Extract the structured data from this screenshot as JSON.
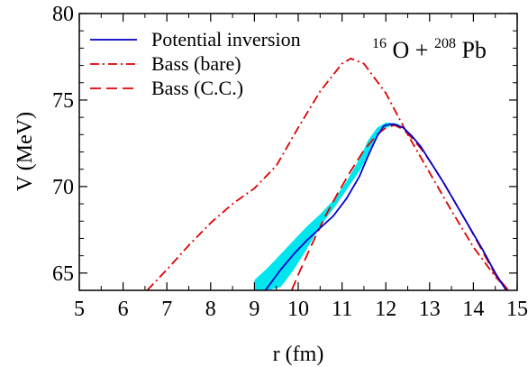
{
  "chart_data": {
    "type": "line",
    "title": "",
    "xlabel": "r   (fm)",
    "ylabel": "V   (MeV)",
    "xlim": [
      5,
      15
    ],
    "ylim": [
      64,
      80
    ],
    "x_ticks": [
      5,
      6,
      7,
      8,
      9,
      10,
      11,
      12,
      13,
      14,
      15
    ],
    "y_ticks": [
      65,
      70,
      75,
      80
    ],
    "grid": false,
    "legend_position": "top-left",
    "annotation": {
      "mass_a": "16",
      "element_a": "O",
      "plus": " + ",
      "mass_b": "208",
      "element_b": "Pb"
    },
    "band": {
      "color": "#00e5ee",
      "x": [
        9.0,
        9.3,
        9.6,
        9.9,
        10.2,
        10.5,
        10.8,
        11.1,
        11.4,
        11.6,
        11.8,
        12.0,
        12.2,
        12.3
      ],
      "upper": [
        64.6,
        65.3,
        66.1,
        66.9,
        67.7,
        68.4,
        69.2,
        70.3,
        71.6,
        72.7,
        73.4,
        73.7,
        73.65,
        73.6
      ],
      "lower": [
        64.0,
        64.0,
        64.2,
        65.2,
        66.4,
        67.7,
        68.7,
        69.8,
        70.9,
        71.8,
        72.9,
        73.4,
        73.55,
        73.5
      ]
    },
    "series": [
      {
        "name": "Potential inversion",
        "color": "#0000cc",
        "dash": "solid",
        "x": [
          9.25,
          9.6,
          9.9,
          10.2,
          10.5,
          10.8,
          11.1,
          11.4,
          11.6,
          11.8,
          11.95,
          12.1,
          12.2,
          12.4,
          12.6,
          12.8,
          13.0,
          13.3,
          13.6,
          13.9,
          14.2,
          14.5,
          14.75
        ],
        "y": [
          64.0,
          65.2,
          66.1,
          66.9,
          67.6,
          68.3,
          69.3,
          70.6,
          71.8,
          72.9,
          73.5,
          73.6,
          73.6,
          73.4,
          72.9,
          72.3,
          71.5,
          70.3,
          69.0,
          67.7,
          66.4,
          65.0,
          64.0
        ]
      },
      {
        "name": "Bass (bare)",
        "color": "#dd0000",
        "dash": "dashdot",
        "x": [
          6.55,
          7.0,
          7.5,
          8.0,
          8.5,
          9.0,
          9.5,
          10.0,
          10.5,
          11.0,
          11.2,
          11.5,
          12.0,
          12.5,
          13.0,
          13.5,
          14.0,
          14.5,
          14.8
        ],
        "y": [
          64.0,
          65.2,
          66.6,
          67.9,
          69.0,
          69.9,
          71.2,
          73.4,
          75.5,
          77.1,
          77.4,
          77.1,
          75.4,
          73.0,
          70.8,
          68.6,
          66.5,
          64.8,
          64.0
        ]
      },
      {
        "name": "Bass (C.C.)",
        "color": "#dd0000",
        "dash": "dashed",
        "x": [
          9.85,
          10.0,
          10.3,
          10.6,
          10.9,
          11.2,
          11.5,
          11.8,
          12.0,
          12.2,
          12.4,
          12.6,
          12.8,
          13.0,
          13.3,
          13.6,
          13.9,
          14.2,
          14.5,
          14.8
        ],
        "y": [
          64.0,
          64.9,
          66.6,
          68.2,
          69.6,
          70.9,
          72.1,
          73.0,
          73.4,
          73.55,
          73.3,
          72.8,
          72.2,
          71.5,
          70.3,
          69.0,
          67.7,
          66.3,
          64.9,
          64.0
        ]
      }
    ]
  }
}
